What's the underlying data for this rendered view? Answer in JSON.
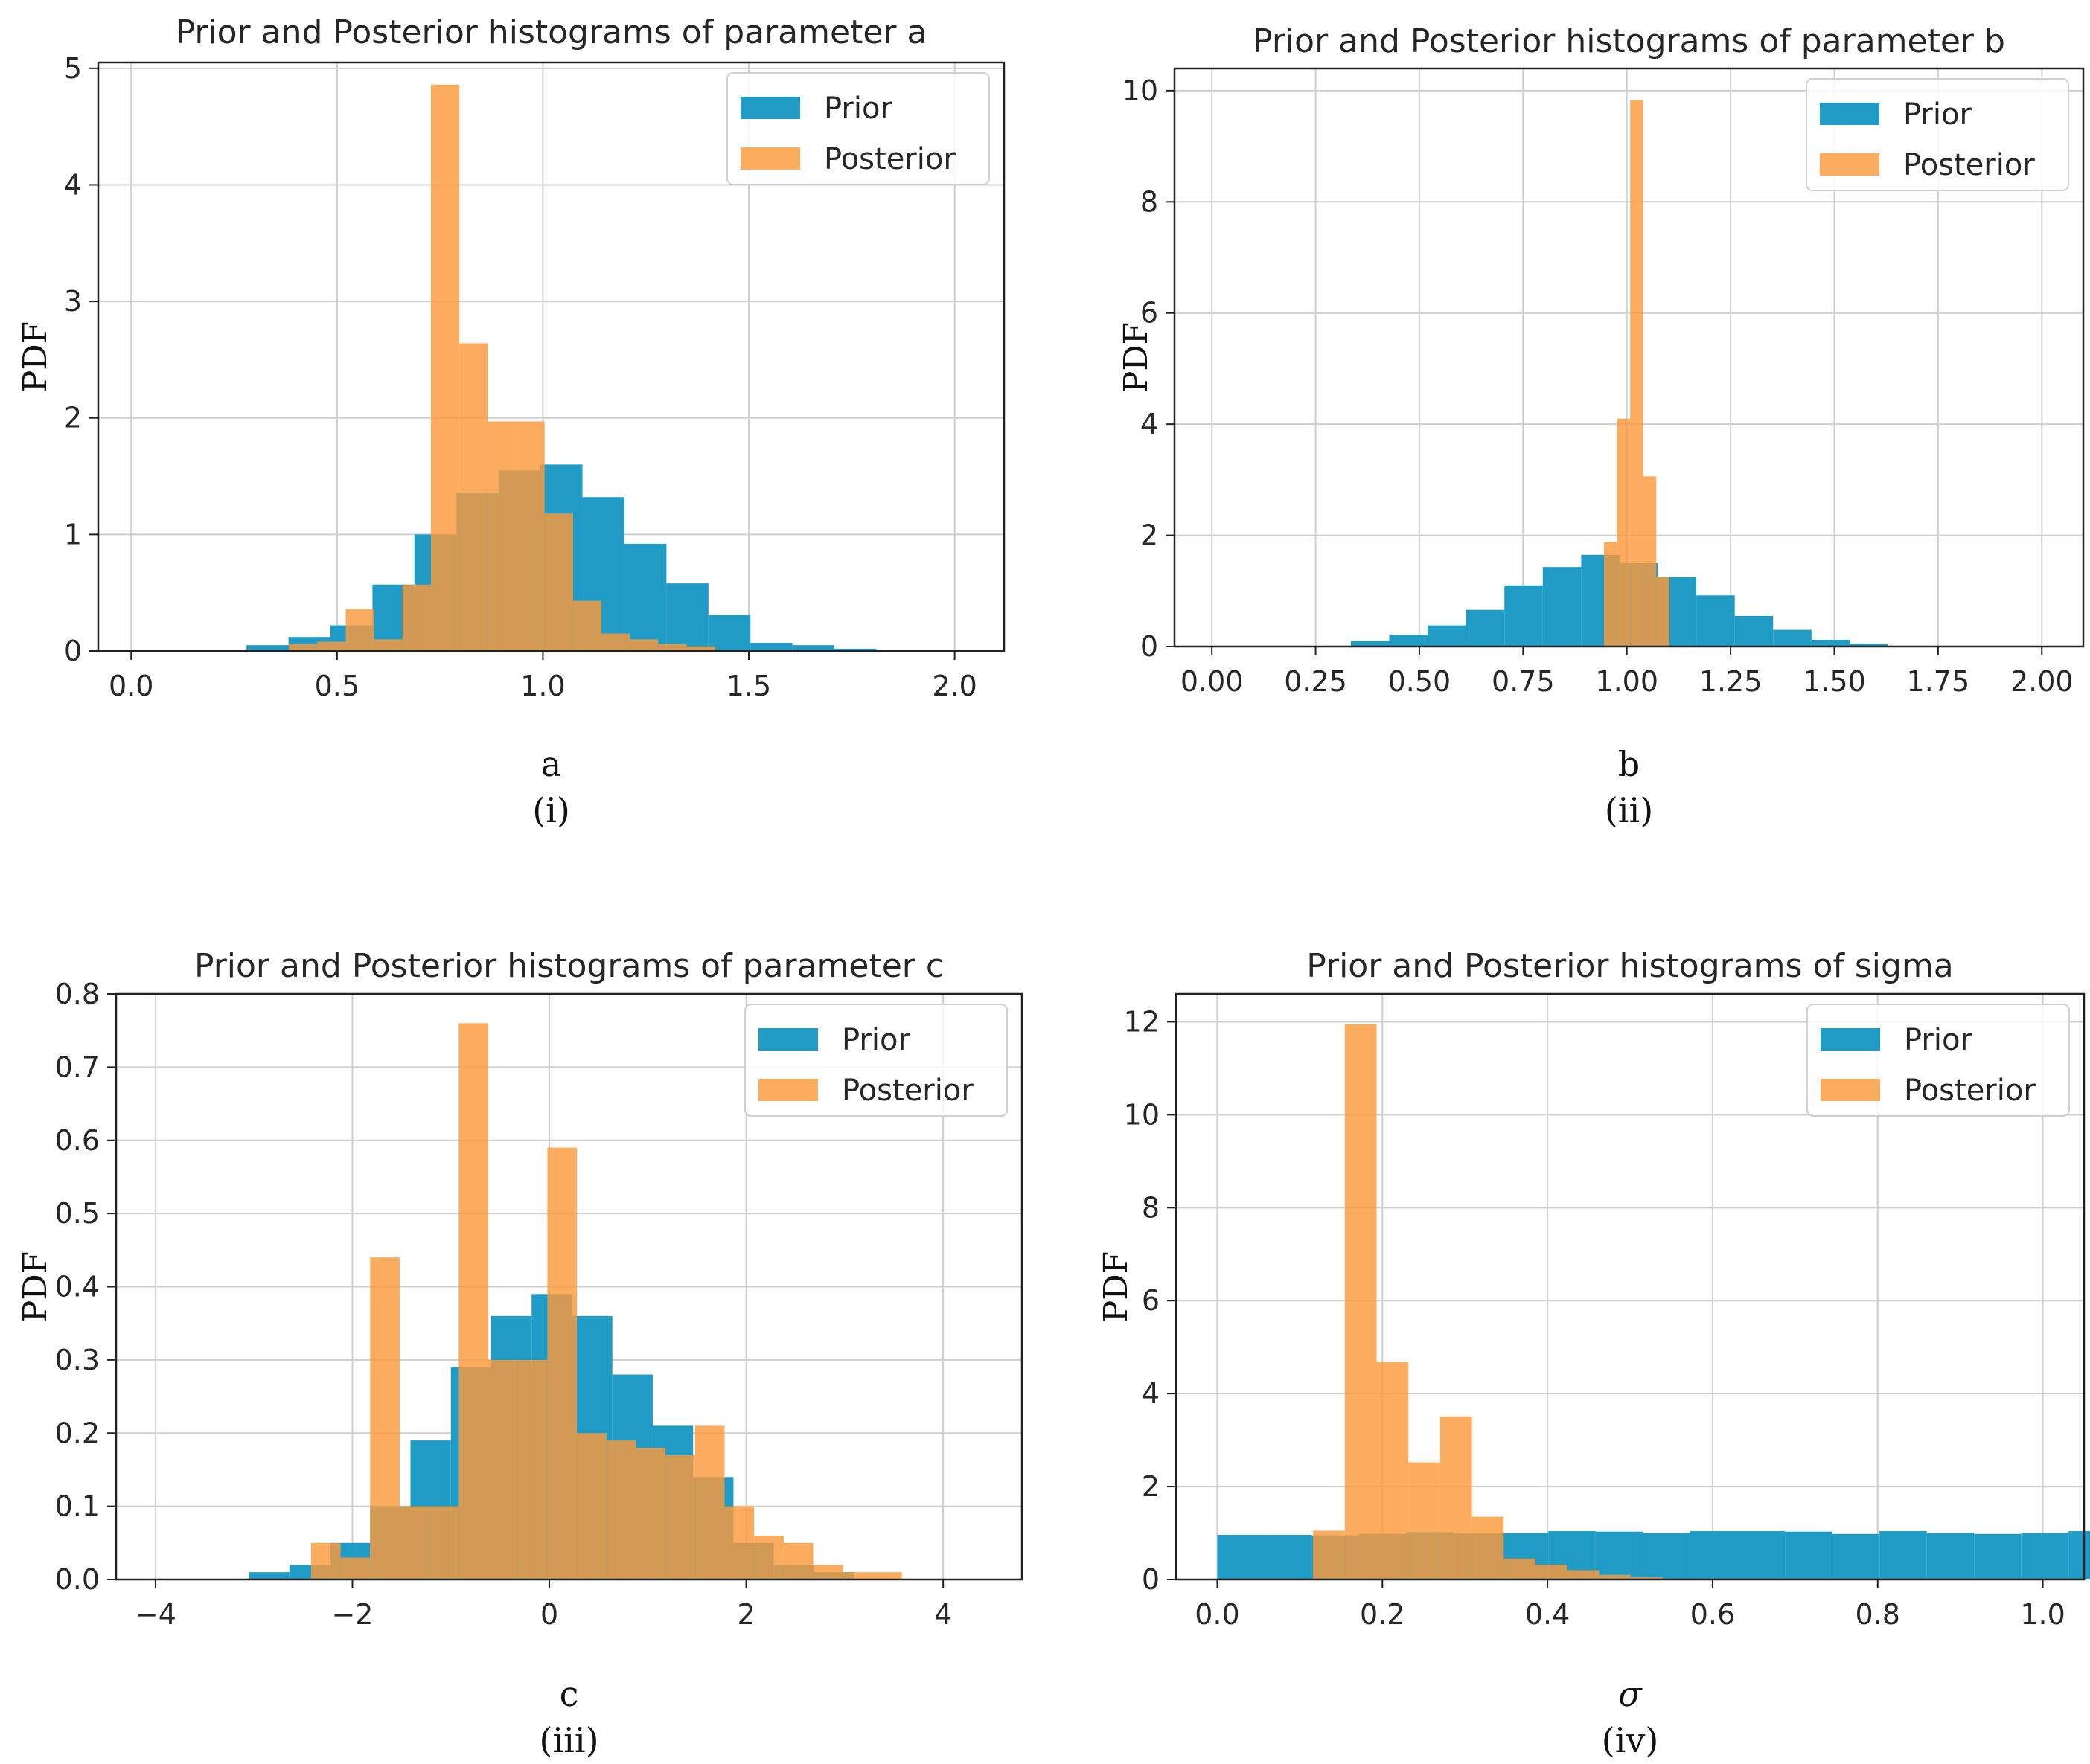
{
  "colors": {
    "prior": "#1f9bc6",
    "posterior": "#fb9a3c",
    "overlap": "#e08a40"
  },
  "chart_data": [
    {
      "id": "a",
      "type": "bar",
      "title": "Prior and Posterior histograms of parameter a",
      "xlabel": "a",
      "ylabel": "PDF",
      "caption": "(i)",
      "xlim": [
        -0.08,
        2.12
      ],
      "ylim": [
        0,
        5.05
      ],
      "xticks": [
        0.0,
        0.5,
        1.0,
        1.5,
        2.0
      ],
      "xtick_labels": [
        "0.0",
        "0.5",
        "1.0",
        "1.5",
        "2.0"
      ],
      "yticks": [
        0,
        1,
        2,
        3,
        4,
        5
      ],
      "ytick_labels": [
        "0",
        "1",
        "2",
        "3",
        "4",
        "5"
      ],
      "legend": [
        "Prior",
        "Posterior"
      ],
      "series": [
        {
          "name": "Prior",
          "bin_start": 0.28,
          "bin_width": 0.102,
          "values": [
            0.05,
            0.12,
            0.22,
            0.57,
            1.0,
            1.36,
            1.55,
            1.6,
            1.32,
            0.92,
            0.58,
            0.31,
            0.07,
            0.05,
            0.02
          ]
        },
        {
          "name": "Posterior",
          "bin_start": 0.383,
          "bin_width": 0.069,
          "values": [
            0.06,
            0.08,
            0.36,
            0.1,
            0.57,
            4.86,
            2.64,
            1.97,
            1.97,
            1.18,
            0.43,
            0.15,
            0.1,
            0.06,
            0.04
          ]
        }
      ]
    },
    {
      "id": "b",
      "type": "bar",
      "title": "Prior and Posterior histograms of parameter b",
      "xlabel": "b",
      "ylabel": "PDF",
      "caption": "(ii)",
      "xlim": [
        -0.09,
        2.1
      ],
      "ylim": [
        0,
        10.4
      ],
      "xticks": [
        0.0,
        0.25,
        0.5,
        0.75,
        1.0,
        1.25,
        1.5,
        1.75,
        2.0
      ],
      "xtick_labels": [
        "0.00",
        "0.25",
        "0.50",
        "0.75",
        "1.00",
        "1.25",
        "1.50",
        "1.75",
        "2.00"
      ],
      "yticks": [
        0,
        2,
        4,
        6,
        8,
        10
      ],
      "ytick_labels": [
        "0",
        "2",
        "4",
        "6",
        "8",
        "10"
      ],
      "legend": [
        "Prior",
        "Posterior"
      ],
      "series": [
        {
          "name": "Prior",
          "bin_start": 0.335,
          "bin_width": 0.0925,
          "values": [
            0.1,
            0.21,
            0.38,
            0.66,
            1.1,
            1.43,
            1.65,
            1.5,
            1.25,
            0.92,
            0.55,
            0.3,
            0.12,
            0.05
          ]
        },
        {
          "name": "Posterior",
          "bin_start": 0.945,
          "bin_width": 0.0315,
          "values": [
            1.88,
            4.1,
            9.83,
            3.06,
            1.25
          ]
        }
      ]
    },
    {
      "id": "c",
      "type": "bar",
      "title": "Prior and Posterior histograms of parameter c",
      "xlabel": "c",
      "ylabel": "PDF",
      "caption": "(iii)",
      "xlim": [
        -4.4,
        4.8
      ],
      "ylim": [
        0,
        0.8
      ],
      "xticks": [
        -4,
        -2,
        0,
        2,
        4
      ],
      "xtick_labels": [
        "−4",
        "−2",
        "0",
        "2",
        "4"
      ],
      "yticks": [
        0.0,
        0.1,
        0.2,
        0.3,
        0.4,
        0.5,
        0.6,
        0.7,
        0.8
      ],
      "ytick_labels": [
        "0.0",
        "0.1",
        "0.2",
        "0.3",
        "0.4",
        "0.5",
        "0.6",
        "0.7",
        "0.8"
      ],
      "legend": [
        "Prior",
        "Posterior"
      ],
      "series": [
        {
          "name": "Prior",
          "bin_start": -3.05,
          "bin_width": 0.41,
          "values": [
            0.01,
            0.02,
            0.05,
            0.1,
            0.19,
            0.29,
            0.36,
            0.39,
            0.36,
            0.28,
            0.21,
            0.14,
            0.05,
            0.02,
            0.01
          ]
        },
        {
          "name": "Posterior",
          "bin_start": -2.42,
          "bin_width": 0.3,
          "values": [
            0.05,
            0.03,
            0.44,
            0.1,
            0.1,
            0.76,
            0.3,
            0.3,
            0.59,
            0.2,
            0.19,
            0.18,
            0.17,
            0.21,
            0.1,
            0.06,
            0.05,
            0.02,
            0.01,
            0.01
          ]
        }
      ]
    },
    {
      "id": "sigma",
      "type": "bar",
      "title": "Prior and Posterior histograms of sigma",
      "xlabel": "σ",
      "ylabel": "PDF",
      "caption": "(iv)",
      "xlim": [
        -0.05,
        1.05
      ],
      "ylim": [
        0,
        12.6
      ],
      "xticks": [
        0.0,
        0.2,
        0.4,
        0.6,
        0.8,
        1.0
      ],
      "xtick_labels": [
        "0.0",
        "0.2",
        "0.4",
        "0.6",
        "0.8",
        "1.0"
      ],
      "yticks": [
        0,
        2,
        4,
        6,
        8,
        10,
        12
      ],
      "ytick_labels": [
        "0",
        "2",
        "4",
        "6",
        "8",
        "10",
        "12"
      ],
      "legend": [
        "Prior",
        "Posterior"
      ],
      "series": [
        {
          "name": "Prior",
          "bin_start": 0.0,
          "bin_width": 0.0573,
          "values": [
            0.96,
            0.96,
            0.95,
            0.98,
            1.02,
            0.99,
            1.0,
            1.04,
            1.03,
            1.0,
            1.04,
            1.04,
            1.03,
            0.98,
            1.04,
            1.0,
            0.98,
            1.0,
            1.04
          ]
        },
        {
          "name": "Posterior",
          "bin_start": 0.116,
          "bin_width": 0.0385,
          "values": [
            1.05,
            11.95,
            4.68,
            2.52,
            3.51,
            1.35,
            0.45,
            0.32,
            0.2,
            0.1,
            0.05
          ]
        }
      ]
    }
  ]
}
